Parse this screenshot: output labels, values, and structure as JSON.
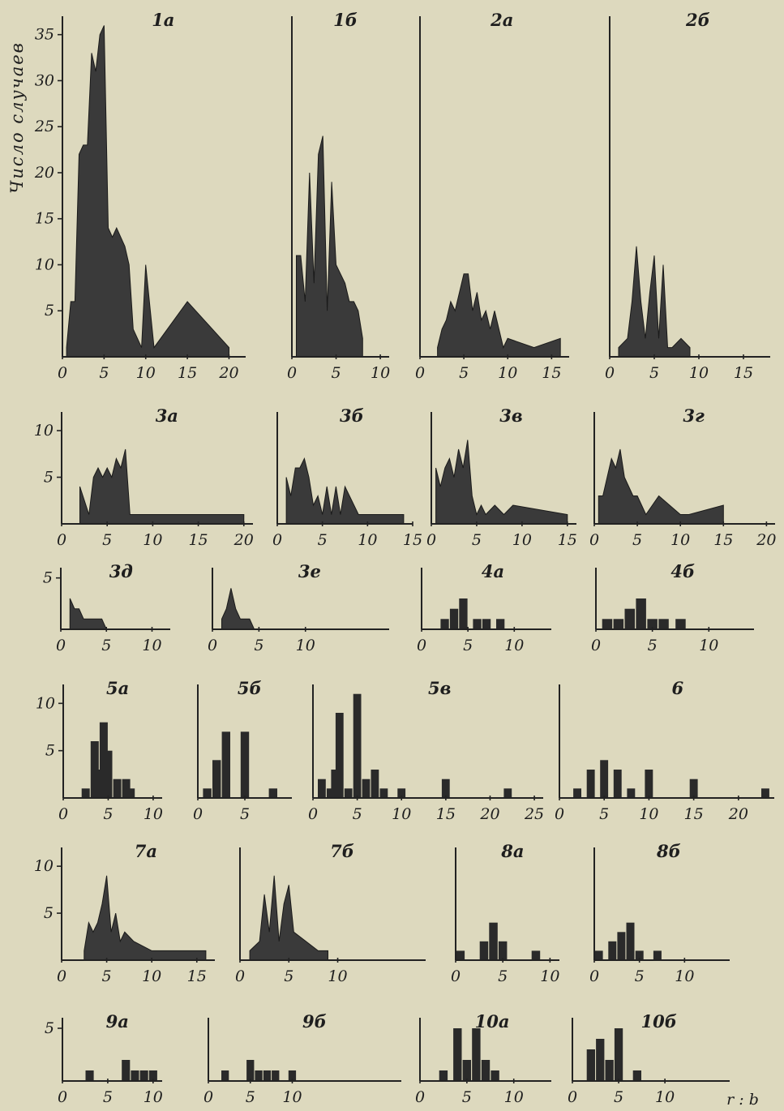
{
  "chart_data": [
    {
      "type": "area",
      "title": "1a",
      "x": [
        0.5,
        1,
        1.5,
        2,
        2.5,
        3,
        3.5,
        4,
        4.5,
        5,
        5.5,
        6,
        6.5,
        7,
        7.5,
        8,
        8.5,
        9,
        9.5,
        10,
        11,
        15,
        20
      ],
      "values": [
        1,
        6,
        6,
        22,
        23,
        23,
        33,
        31,
        35,
        36,
        14,
        13,
        14,
        13,
        12,
        10,
        3,
        2,
        1,
        10,
        1,
        6,
        1
      ],
      "xticks": [
        "0",
        "5",
        "10",
        "15",
        "20"
      ],
      "xlim": [
        0,
        22
      ],
      "ylim": [
        0,
        37
      ],
      "yticks": [
        "5",
        "10",
        "15",
        "20",
        "25",
        "30",
        "35"
      ]
    },
    {
      "type": "area",
      "title": "1б",
      "x": [
        0.5,
        1,
        1.5,
        2,
        2.5,
        3,
        3.5,
        4,
        4.5,
        5,
        5.5,
        6,
        6.5,
        7,
        7.5,
        8
      ],
      "values": [
        11,
        11,
        6,
        20,
        8,
        22,
        24,
        5,
        19,
        10,
        9,
        8,
        6,
        6,
        5,
        2
      ],
      "xticks": [
        "0",
        "5",
        "10"
      ],
      "xlim": [
        0,
        11
      ],
      "ylim": [
        0,
        37
      ]
    },
    {
      "type": "area",
      "title": "2a",
      "x": [
        2,
        2.5,
        3,
        3.5,
        4,
        4.5,
        5,
        5.5,
        6,
        6.5,
        7,
        7.5,
        8,
        8.5,
        9,
        9.5,
        10,
        13,
        16
      ],
      "values": [
        1,
        3,
        4,
        6,
        5,
        7,
        9,
        9,
        5,
        7,
        4,
        5,
        3,
        5,
        3,
        1,
        2,
        1,
        2
      ],
      "xticks": [
        "0",
        "5",
        "10",
        "15"
      ],
      "xlim": [
        0,
        17
      ],
      "ylim": [
        0,
        37
      ]
    },
    {
      "type": "area",
      "title": "2б",
      "x": [
        1,
        2,
        2.5,
        3,
        3.5,
        4,
        4.5,
        5,
        5.5,
        6,
        6.5,
        7,
        8,
        9
      ],
      "values": [
        1,
        2,
        6,
        12,
        6,
        2,
        7,
        11,
        2,
        10,
        1,
        1,
        2,
        1
      ],
      "xticks": [
        "0",
        "5",
        "10",
        "15"
      ],
      "xlim": [
        0,
        18
      ],
      "ylim": [
        0,
        37
      ]
    },
    {
      "type": "area",
      "title": "3a",
      "x": [
        2,
        3,
        3.5,
        4,
        4.5,
        5,
        5.5,
        6,
        6.5,
        7,
        7.5,
        9,
        10,
        15,
        20
      ],
      "values": [
        4,
        1,
        5,
        6,
        5,
        6,
        5,
        7,
        6,
        8,
        1,
        1,
        1,
        1,
        1
      ],
      "xticks": [
        "0",
        "5",
        "10",
        "15",
        "20"
      ],
      "xlim": [
        0,
        21
      ],
      "ylim": [
        0,
        12
      ],
      "yticks": [
        "5",
        "10"
      ]
    },
    {
      "type": "area",
      "title": "3б",
      "x": [
        1,
        1.5,
        2,
        2.5,
        3,
        3.5,
        4,
        4.5,
        5,
        5.5,
        6,
        6.5,
        7,
        7.5,
        9,
        14
      ],
      "values": [
        5,
        3,
        6,
        6,
        7,
        5,
        2,
        3,
        1,
        4,
        1,
        4,
        1,
        4,
        1,
        1
      ],
      "xticks": [
        "0",
        "5",
        "10",
        "15"
      ],
      "xlim": [
        0,
        15
      ],
      "ylim": [
        0,
        12
      ]
    },
    {
      "type": "area",
      "title": "3в",
      "x": [
        0.5,
        1,
        1.5,
        2,
        2.5,
        3,
        3.5,
        4,
        4.5,
        5,
        5.5,
        6,
        7,
        8,
        9,
        15
      ],
      "values": [
        6,
        4,
        6,
        7,
        5,
        8,
        6,
        9,
        3,
        1,
        2,
        1,
        2,
        1,
        2,
        1
      ],
      "xticks": [
        "0",
        "5",
        "10",
        "15"
      ],
      "xlim": [
        0,
        16
      ],
      "ylim": [
        0,
        12
      ]
    },
    {
      "type": "area",
      "title": "3г",
      "x": [
        0.5,
        1,
        1.5,
        2,
        2.5,
        3,
        3.5,
        4,
        4.5,
        5,
        6,
        7.5,
        10,
        11,
        15
      ],
      "values": [
        3,
        3,
        5,
        7,
        6,
        8,
        5,
        4,
        3,
        3,
        1,
        3,
        1,
        1,
        2
      ],
      "xticks": [
        "0",
        "5",
        "10",
        "15",
        "20"
      ],
      "xlim": [
        0,
        21
      ],
      "ylim": [
        0,
        12
      ]
    },
    {
      "type": "area",
      "title": "3д",
      "x": [
        1,
        1.5,
        2,
        2.5,
        3,
        3.5,
        4,
        4.5,
        5
      ],
      "values": [
        3,
        2,
        2,
        1,
        1,
        1,
        1,
        1,
        0
      ],
      "xticks": [
        "0",
        "5",
        "10"
      ],
      "xlim": [
        0,
        12
      ],
      "ylim": [
        0,
        6
      ],
      "yticks": [
        "5"
      ]
    },
    {
      "type": "area",
      "title": "3е",
      "x": [
        1,
        1.5,
        2,
        2.5,
        3,
        3.5,
        4,
        4.5
      ],
      "values": [
        1,
        2,
        4,
        2,
        1,
        1,
        1,
        0
      ],
      "xticks": [
        "0",
        "5",
        "10"
      ],
      "xlim": [
        0,
        19
      ],
      "ylim": [
        0,
        6
      ]
    },
    {
      "type": "bar",
      "title": "4a",
      "x": [
        2.5,
        3.5,
        4.5,
        6,
        7,
        8.5
      ],
      "values": [
        1,
        2,
        3,
        1,
        1,
        1
      ],
      "xticks": [
        "0",
        "5",
        "10"
      ],
      "xlim": [
        0,
        14
      ],
      "ylim": [
        0,
        6
      ]
    },
    {
      "type": "bar",
      "title": "4б",
      "x": [
        1,
        2,
        3,
        4,
        5,
        6,
        7.5
      ],
      "values": [
        1,
        1,
        2,
        3,
        1,
        1,
        1
      ],
      "xticks": [
        "0",
        "5",
        "10"
      ],
      "xlim": [
        0,
        14
      ],
      "ylim": [
        0,
        6
      ]
    },
    {
      "type": "bar",
      "title": "5a",
      "x": [
        2.5,
        3.5,
        4,
        4.5,
        5,
        6,
        7,
        7.5
      ],
      "values": [
        1,
        6,
        3,
        8,
        5,
        2,
        2,
        1
      ],
      "xticks": [
        "0",
        "5",
        "10"
      ],
      "xlim": [
        0,
        11
      ],
      "ylim": [
        0,
        12
      ],
      "yticks": [
        "5",
        "10"
      ]
    },
    {
      "type": "bar",
      "title": "5б",
      "x": [
        1,
        2,
        3,
        5,
        8
      ],
      "values": [
        1,
        4,
        7,
        7,
        1
      ],
      "xticks": [
        "0",
        "5"
      ],
      "xlim": [
        0,
        10
      ],
      "ylim": [
        0,
        12
      ]
    },
    {
      "type": "bar",
      "title": "5в",
      "x": [
        1,
        2,
        2.5,
        3,
        4,
        5,
        6,
        7,
        8,
        10,
        15,
        22
      ],
      "values": [
        2,
        1,
        3,
        9,
        1,
        11,
        2,
        3,
        1,
        1,
        2,
        1
      ],
      "xticks": [
        "0",
        "5",
        "10",
        "15",
        "20",
        "25"
      ],
      "xlim": [
        0,
        26
      ],
      "ylim": [
        0,
        12
      ]
    },
    {
      "type": "bar",
      "title": "6",
      "x": [
        2,
        3.5,
        5,
        6.5,
        8,
        10,
        15,
        23
      ],
      "values": [
        1,
        3,
        4,
        3,
        1,
        3,
        2,
        1
      ],
      "xticks": [
        "0",
        "5",
        "10",
        "15",
        "20"
      ],
      "xlim": [
        0,
        24
      ],
      "ylim": [
        0,
        12
      ]
    },
    {
      "type": "area",
      "title": "7a",
      "x": [
        2.5,
        3,
        3.5,
        4,
        4.5,
        5,
        5.5,
        6,
        6.5,
        7,
        8,
        10,
        16
      ],
      "values": [
        1,
        4,
        3,
        4,
        6,
        9,
        3,
        5,
        2,
        3,
        2,
        1,
        1
      ],
      "xticks": [
        "0",
        "5",
        "10",
        "15"
      ],
      "xlim": [
        0,
        17
      ],
      "ylim": [
        0,
        12
      ],
      "yticks": [
        "5",
        "10"
      ]
    },
    {
      "type": "area",
      "title": "7б",
      "x": [
        1,
        2,
        2.5,
        3,
        3.5,
        4,
        4.5,
        5,
        5.5,
        8,
        9
      ],
      "values": [
        1,
        2,
        7,
        3,
        9,
        2,
        6,
        8,
        3,
        1,
        1
      ],
      "xticks": [
        "0",
        "5",
        "10"
      ],
      "xlim": [
        0,
        19
      ],
      "ylim": [
        0,
        12
      ]
    },
    {
      "type": "bar",
      "title": "8a",
      "x": [
        0.5,
        3,
        4,
        5,
        8.5
      ],
      "values": [
        1,
        2,
        4,
        2,
        1
      ],
      "xticks": [
        "0",
        "5",
        "10"
      ],
      "xlim": [
        0,
        11
      ],
      "ylim": [
        0,
        12
      ]
    },
    {
      "type": "bar",
      "title": "8б",
      "x": [
        0.5,
        2,
        3,
        4,
        5,
        7
      ],
      "values": [
        1,
        2,
        3,
        4,
        1,
        1
      ],
      "xticks": [
        "0",
        "5",
        "10"
      ],
      "xlim": [
        0,
        15
      ],
      "ylim": [
        0,
        12
      ]
    },
    {
      "type": "bar",
      "title": "9a",
      "x": [
        3,
        7,
        8,
        9,
        10
      ],
      "values": [
        1,
        2,
        1,
        1,
        1
      ],
      "xticks": [
        "0",
        "5",
        "10"
      ],
      "xlim": [
        0,
        11
      ],
      "ylim": [
        0,
        6
      ],
      "yticks": [
        "5"
      ]
    },
    {
      "type": "bar",
      "title": "9б",
      "x": [
        2,
        5,
        6,
        7,
        8,
        10
      ],
      "values": [
        1,
        2,
        1,
        1,
        1,
        1
      ],
      "xticks": [
        "0",
        "5",
        "10"
      ],
      "xlim": [
        0,
        23
      ],
      "ylim": [
        0,
        6
      ]
    },
    {
      "type": "bar",
      "title": "10a",
      "x": [
        2.5,
        4,
        5,
        6,
        7,
        8
      ],
      "values": [
        1,
        5,
        2,
        5,
        2,
        1
      ],
      "xticks": [
        "0",
        "5",
        "10"
      ],
      "xlim": [
        0,
        14
      ],
      "ylim": [
        0,
        6
      ]
    },
    {
      "type": "bar",
      "title": "10б",
      "x": [
        2,
        3,
        4,
        5,
        7
      ],
      "values": [
        3,
        4,
        2,
        5,
        1
      ],
      "xticks": [
        "0",
        "5",
        "10"
      ],
      "xlim": [
        0,
        17
      ],
      "ylim": [
        0,
        6
      ]
    }
  ],
  "ylabel": "Число случаев",
  "xlabel": "r : b"
}
